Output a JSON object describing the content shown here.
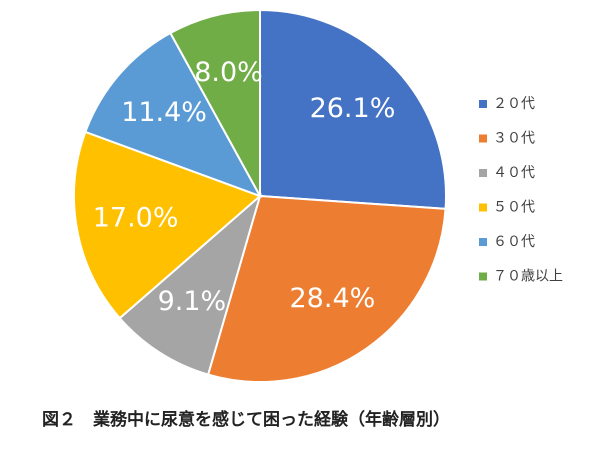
{
  "chart_data": {
    "type": "pie",
    "title": "図２　業務中に尿意を感じて困った経験（年齢層別）",
    "categories": [
      "２０代",
      "３０代",
      "４０代",
      "５０代",
      "６０代",
      "７０歳以上"
    ],
    "values": [
      26.1,
      28.4,
      9.1,
      17.0,
      11.4,
      8.0
    ],
    "value_labels": [
      "26.1%",
      "28.4%",
      "9.1%",
      "17.0%",
      "11.4%",
      "8.0%"
    ],
    "colors": [
      "#4472c4",
      "#ed7d31",
      "#a5a5a5",
      "#ffc000",
      "#5b9bd5",
      "#70ad47"
    ],
    "legend": "right"
  }
}
